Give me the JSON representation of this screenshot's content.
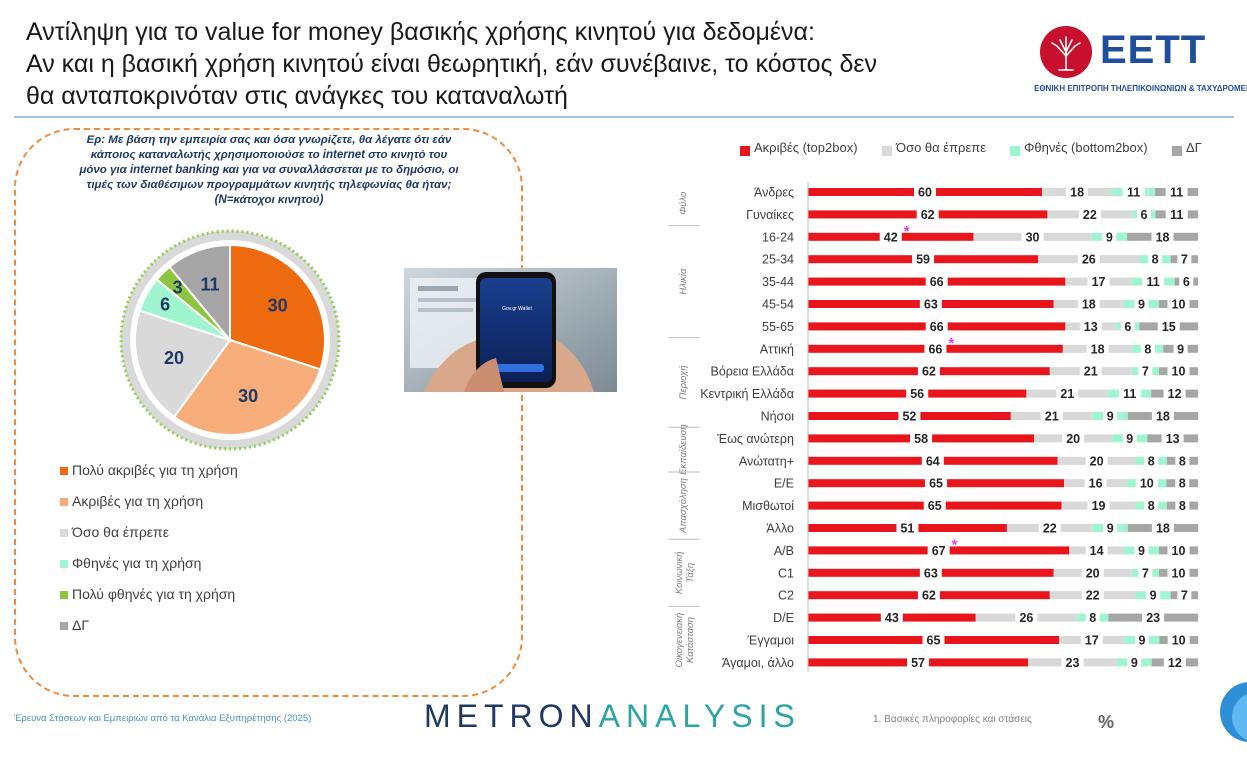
{
  "title": {
    "line1": "Αντίληψη για το value for money βασικής χρήσης κινητού για δεδομένα:",
    "line2": "Αν και η βασική χρήση κινητού είναι θεωρητική, εάν συνέβαινε, το κόστος δεν",
    "line3": "θα ανταποκρινόταν στις ανάγκες του καταναλωτή"
  },
  "logo": {
    "text": "ΕΕΤΤ",
    "subtitle": "ΕΘΝΙΚΗ ΕΠΙΤΡΟΠΗ ΤΗΛΕΠΙΚΟΙΝΩΝΙΩΝ & ΤΑΧΥΔΡΟΜΕΙΩΝ",
    "color": "#c8102e"
  },
  "question": "Ερ: Με βάση την εμπειρία σας και όσα γνωρίζετε, θα λέγατε ότι εάν κάποιος καταναλωτής χρησιμοποιούσε το internet στο κινητό του μόνο για internet banking και για να συναλλάσσεται με το δημόσιο, οι τιμές των διαθέσιμων προγραμμάτων κινητής τηλεφωνίας θα ήταν; (N=κάτοχοι κινητού)",
  "photo": {
    "screen_text": "Gov.gr Wallet"
  },
  "chart_data": [
    {
      "type": "pie",
      "slices": [
        {
          "label": "Πολύ ακριβές για τη χρήση",
          "value": 30,
          "color": "#ed6a0f"
        },
        {
          "label": "Ακριβές για τη χρήση",
          "value": 30,
          "color": "#f7ad7a"
        },
        {
          "label": "Όσο θα έπρεπε",
          "value": 20,
          "color": "#d9d9d9"
        },
        {
          "label": "Φθηνές για τη χρήση",
          "value": 6,
          "color": "#9ff5cf"
        },
        {
          "label": "Πολύ φθηνές για τη χρήση",
          "value": 3,
          "color": "#8cc63f"
        },
        {
          "label": "ΔΓ",
          "value": 11,
          "color": "#a6a6a6"
        }
      ]
    },
    {
      "type": "bar",
      "orientation": "horizontal",
      "stacked": true,
      "series": [
        {
          "name": "Ακριβές (top2box)",
          "color": "#e8151b"
        },
        {
          "name": "Όσο θα έπρεπε",
          "color": "#d9d9d9"
        },
        {
          "name": "Φθηνές (bottom2box)",
          "color": "#9ff5cf"
        },
        {
          "name": "ΔΓ",
          "color": "#a6a6a6"
        }
      ],
      "groups": [
        {
          "name": "Φύλο",
          "rows": 2
        },
        {
          "name": "Ηλικία",
          "rows": 5
        },
        {
          "name": "Περιοχή",
          "rows": 4
        },
        {
          "name": "Εκπαίδευση",
          "rows": 2
        },
        {
          "name": "Απασχόληση",
          "rows": 3
        },
        {
          "name": "Κοινωνική Τάξη",
          "rows": 3
        },
        {
          "name": "Οικογενειακή Κατάσταση",
          "rows": 3
        }
      ],
      "rows": [
        {
          "label": "Άνδρες",
          "values": [
            60,
            18,
            11,
            11
          ],
          "mark": false
        },
        {
          "label": "Γυναίκες",
          "values": [
            62,
            22,
            6,
            11
          ],
          "mark": false
        },
        {
          "label": "16-24",
          "values": [
            42,
            30,
            9,
            18
          ],
          "mark": true
        },
        {
          "label": "25-34",
          "values": [
            59,
            26,
            8,
            7
          ],
          "mark": false
        },
        {
          "label": "35-44",
          "values": [
            66,
            17,
            11,
            6
          ],
          "mark": false
        },
        {
          "label": "45-54",
          "values": [
            63,
            18,
            9,
            10
          ],
          "mark": false
        },
        {
          "label": "55-65",
          "values": [
            66,
            13,
            6,
            15
          ],
          "mark": false
        },
        {
          "label": "Αττική",
          "values": [
            66,
            18,
            8,
            9
          ],
          "mark": true
        },
        {
          "label": "Βόρεια Ελλάδα",
          "values": [
            62,
            21,
            7,
            10
          ],
          "mark": false
        },
        {
          "label": "Κεντρική Ελλάδα",
          "values": [
            56,
            21,
            11,
            12
          ],
          "mark": false
        },
        {
          "label": "Νήσοι",
          "values": [
            52,
            21,
            9,
            18
          ],
          "mark": false
        },
        {
          "label": "Έως ανώτερη",
          "values": [
            58,
            20,
            9,
            13
          ],
          "mark": false
        },
        {
          "label": "Ανώτατη+",
          "values": [
            64,
            20,
            8,
            8
          ],
          "mark": false
        },
        {
          "label": "Ε/Ε",
          "values": [
            65,
            16,
            10,
            8
          ],
          "mark": false
        },
        {
          "label": "Μισθωτοί",
          "values": [
            65,
            19,
            8,
            8
          ],
          "mark": false
        },
        {
          "label": "Άλλο",
          "values": [
            51,
            22,
            9,
            18
          ],
          "mark": false
        },
        {
          "label": "Α/Β",
          "values": [
            67,
            14,
            9,
            10
          ],
          "mark": true
        },
        {
          "label": "C1",
          "values": [
            63,
            20,
            7,
            10
          ],
          "mark": false
        },
        {
          "label": "C2",
          "values": [
            62,
            22,
            9,
            7
          ],
          "mark": false
        },
        {
          "label": "D/E",
          "values": [
            43,
            26,
            8,
            23
          ],
          "mark": false
        },
        {
          "label": "Έγγαμοι",
          "values": [
            65,
            17,
            9,
            10
          ],
          "mark": false
        },
        {
          "label": "Άγαμοι, άλλο",
          "values": [
            57,
            23,
            9,
            12
          ],
          "mark": false
        }
      ],
      "significance_marker": "*"
    }
  ],
  "footer": {
    "source": "Έρευνα Στάσεων και Εμπειριών από τα Κανάλια Εξυπηρέτησης (2025)",
    "brand_part1": "METRON",
    "brand_part2": "ANALYSIS",
    "section": "1. Βασικές πληροφορίες και στάσεις",
    "icon_glyph": "%"
  }
}
